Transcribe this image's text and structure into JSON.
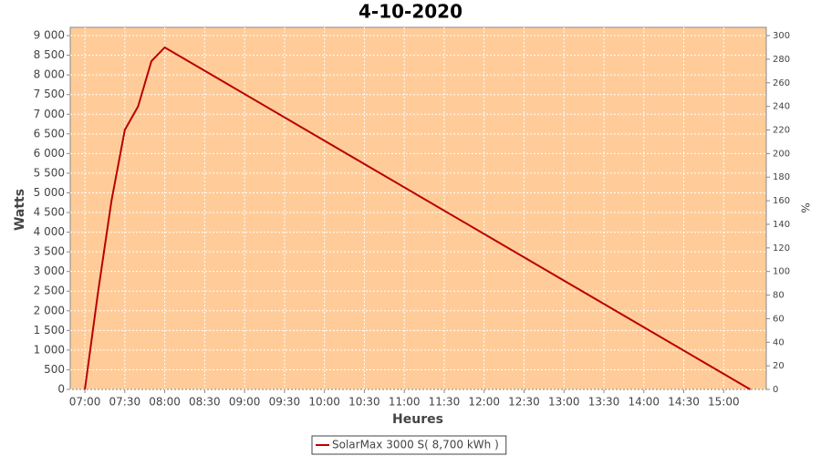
{
  "chart_data": {
    "type": "line",
    "title": "4-10-2020",
    "x_label": "Heures",
    "y_label": "Watts",
    "y2_label": "%",
    "x": [
      420,
      430,
      440,
      450,
      460,
      470,
      480,
      920
    ],
    "series": [
      {
        "name": "SolarMax 3000 S( 8,700 kWh )",
        "color": "#bb0000",
        "values": [
          0,
          2500,
          4800,
          6600,
          7200,
          8350,
          8700,
          0
        ]
      }
    ],
    "xlim": [
      409,
      932
    ],
    "xticks": [
      {
        "value": 420,
        "label": "07:00"
      },
      {
        "value": 450,
        "label": "07:30"
      },
      {
        "value": 480,
        "label": "08:00"
      },
      {
        "value": 510,
        "label": "08:30"
      },
      {
        "value": 540,
        "label": "09:00"
      },
      {
        "value": 570,
        "label": "09:30"
      },
      {
        "value": 600,
        "label": "10:00"
      },
      {
        "value": 630,
        "label": "10:30"
      },
      {
        "value": 660,
        "label": "11:00"
      },
      {
        "value": 690,
        "label": "11:30"
      },
      {
        "value": 720,
        "label": "12:00"
      },
      {
        "value": 750,
        "label": "12:30"
      },
      {
        "value": 780,
        "label": "13:00"
      },
      {
        "value": 810,
        "label": "13:30"
      },
      {
        "value": 840,
        "label": "14:00"
      },
      {
        "value": 870,
        "label": "14:30"
      },
      {
        "value": 900,
        "label": "15:00"
      }
    ],
    "ylim": [
      0,
      9210
    ],
    "yticks": [
      0,
      500,
      {
        "value": 1000,
        "label": "1 000"
      },
      {
        "value": 1500,
        "label": "1 500"
      },
      {
        "value": 2000,
        "label": "2 000"
      },
      {
        "value": 2500,
        "label": "2 500"
      },
      {
        "value": 3000,
        "label": "3 000"
      },
      {
        "value": 3500,
        "label": "3 500"
      },
      {
        "value": 4000,
        "label": "4 000"
      },
      {
        "value": 4500,
        "label": "4 500"
      },
      {
        "value": 5000,
        "label": "5 000"
      },
      {
        "value": 5500,
        "label": "5 500"
      },
      {
        "value": 6000,
        "label": "6 000"
      },
      {
        "value": 6500,
        "label": "6 500"
      },
      {
        "value": 7000,
        "label": "7 000"
      },
      {
        "value": 7500,
        "label": "7 500"
      },
      {
        "value": 8000,
        "label": "8 000"
      },
      {
        "value": 8500,
        "label": "8 500"
      },
      {
        "value": 9000,
        "label": "9 000"
      }
    ],
    "y2lim": [
      0,
      307
    ],
    "y2ticks": [
      0,
      20,
      40,
      60,
      80,
      100,
      120,
      140,
      160,
      180,
      200,
      220,
      240,
      260,
      280,
      300
    ],
    "grid": true,
    "plot_background": "#ffcc99",
    "legend": "bottom"
  }
}
